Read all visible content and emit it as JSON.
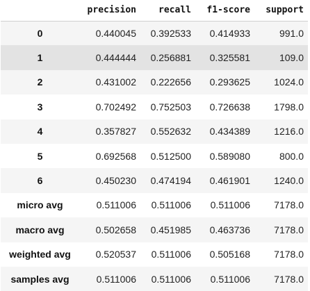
{
  "table": {
    "columns": [
      "precision",
      "recall",
      "f1-score",
      "support"
    ],
    "rows": [
      {
        "label": "0",
        "values": [
          "0.440045",
          "0.392533",
          "0.414933",
          "991.0"
        ]
      },
      {
        "label": "1",
        "values": [
          "0.444444",
          "0.256881",
          "0.325581",
          "109.0"
        ]
      },
      {
        "label": "2",
        "values": [
          "0.431002",
          "0.222656",
          "0.293625",
          "1024.0"
        ]
      },
      {
        "label": "3",
        "values": [
          "0.702492",
          "0.752503",
          "0.726638",
          "1798.0"
        ]
      },
      {
        "label": "4",
        "values": [
          "0.357827",
          "0.552632",
          "0.434389",
          "1216.0"
        ]
      },
      {
        "label": "5",
        "values": [
          "0.692568",
          "0.512500",
          "0.589080",
          "800.0"
        ]
      },
      {
        "label": "6",
        "values": [
          "0.450230",
          "0.474194",
          "0.461901",
          "1240.0"
        ]
      },
      {
        "label": "micro avg",
        "values": [
          "0.511006",
          "0.511006",
          "0.511006",
          "7178.0"
        ]
      },
      {
        "label": "macro avg",
        "values": [
          "0.502658",
          "0.451985",
          "0.463736",
          "7178.0"
        ]
      },
      {
        "label": "weighted avg",
        "values": [
          "0.520537",
          "0.511006",
          "0.505168",
          "7178.0"
        ]
      },
      {
        "label": "samples avg",
        "values": [
          "0.511006",
          "0.511006",
          "0.511006",
          "7178.0"
        ]
      }
    ],
    "hovered_row_label": "1"
  }
}
